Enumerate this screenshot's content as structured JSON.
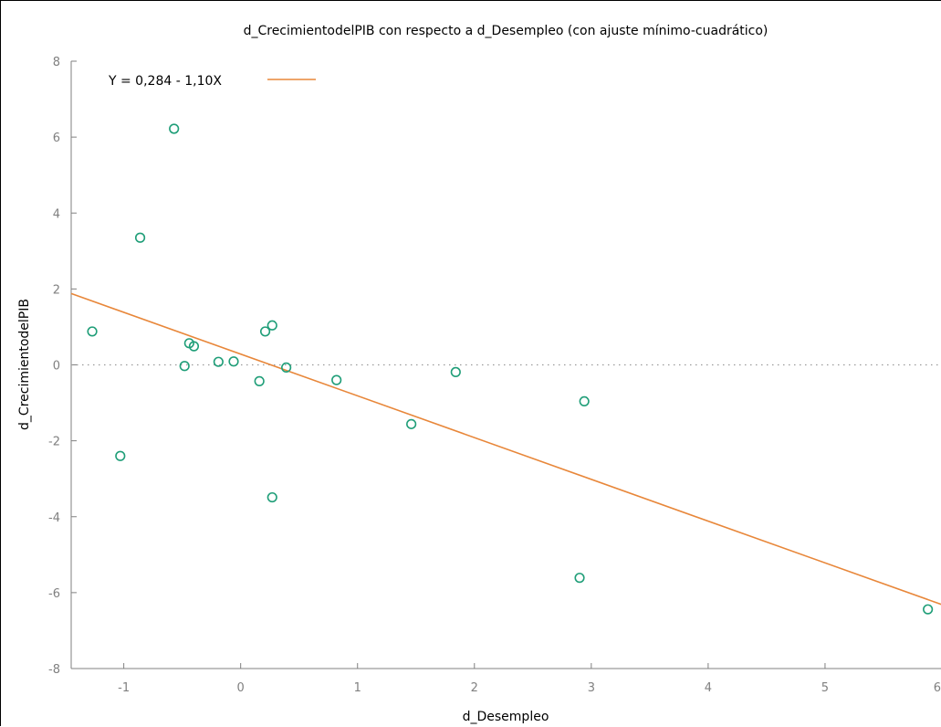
{
  "chart_data": {
    "type": "scatter",
    "title": "d_CrecimientodelPIB con respecto a d_Desempleo (con ajuste mínimo-cuadrático)",
    "xlabel": "d_Desempleo",
    "ylabel": "d_CrecimientodelPIB",
    "xlim": [
      -1.45,
      6.0
    ],
    "ylim": [
      -8,
      8
    ],
    "xticks": [
      -1,
      0,
      1,
      2,
      3,
      4,
      5,
      6
    ],
    "xtick_labels": [
      "-1",
      "0",
      "1",
      "2",
      "3",
      "4",
      "5",
      "6"
    ],
    "yticks": [
      -8,
      -6,
      -4,
      -2,
      0,
      2,
      4,
      6,
      8
    ],
    "ytick_labels": [
      "-8",
      "-6",
      "-4",
      "-2",
      "0",
      "2",
      "4",
      "6",
      "8"
    ],
    "grid": false,
    "zero_line": true,
    "legend_position": "top-left",
    "colors": {
      "points": "#1f9e78",
      "fit_line": "#e8873a",
      "zero_line": "#9a9a9a",
      "axes": "#808080"
    },
    "series": [
      {
        "name": "",
        "type": "scatter",
        "points": [
          {
            "x": -1.27,
            "y": 0.88
          },
          {
            "x": -1.03,
            "y": -2.4
          },
          {
            "x": -0.86,
            "y": 3.35
          },
          {
            "x": -0.57,
            "y": 6.22
          },
          {
            "x": -0.48,
            "y": -0.03
          },
          {
            "x": -0.44,
            "y": 0.57
          },
          {
            "x": -0.4,
            "y": 0.49
          },
          {
            "x": -0.19,
            "y": 0.08
          },
          {
            "x": -0.06,
            "y": 0.09
          },
          {
            "x": 0.16,
            "y": -0.43
          },
          {
            "x": 0.21,
            "y": 0.88
          },
          {
            "x": 0.27,
            "y": 1.04
          },
          {
            "x": 0.27,
            "y": -3.49
          },
          {
            "x": 0.39,
            "y": -0.07
          },
          {
            "x": 0.82,
            "y": -0.4
          },
          {
            "x": 1.46,
            "y": -1.56
          },
          {
            "x": 1.84,
            "y": -0.19
          },
          {
            "x": 2.9,
            "y": -5.61
          },
          {
            "x": 2.94,
            "y": -0.96
          },
          {
            "x": 5.88,
            "y": -6.44
          }
        ]
      },
      {
        "name": "Y = 0,284 - 1,10X",
        "type": "line",
        "intercept": 0.284,
        "slope": -1.1
      }
    ]
  }
}
